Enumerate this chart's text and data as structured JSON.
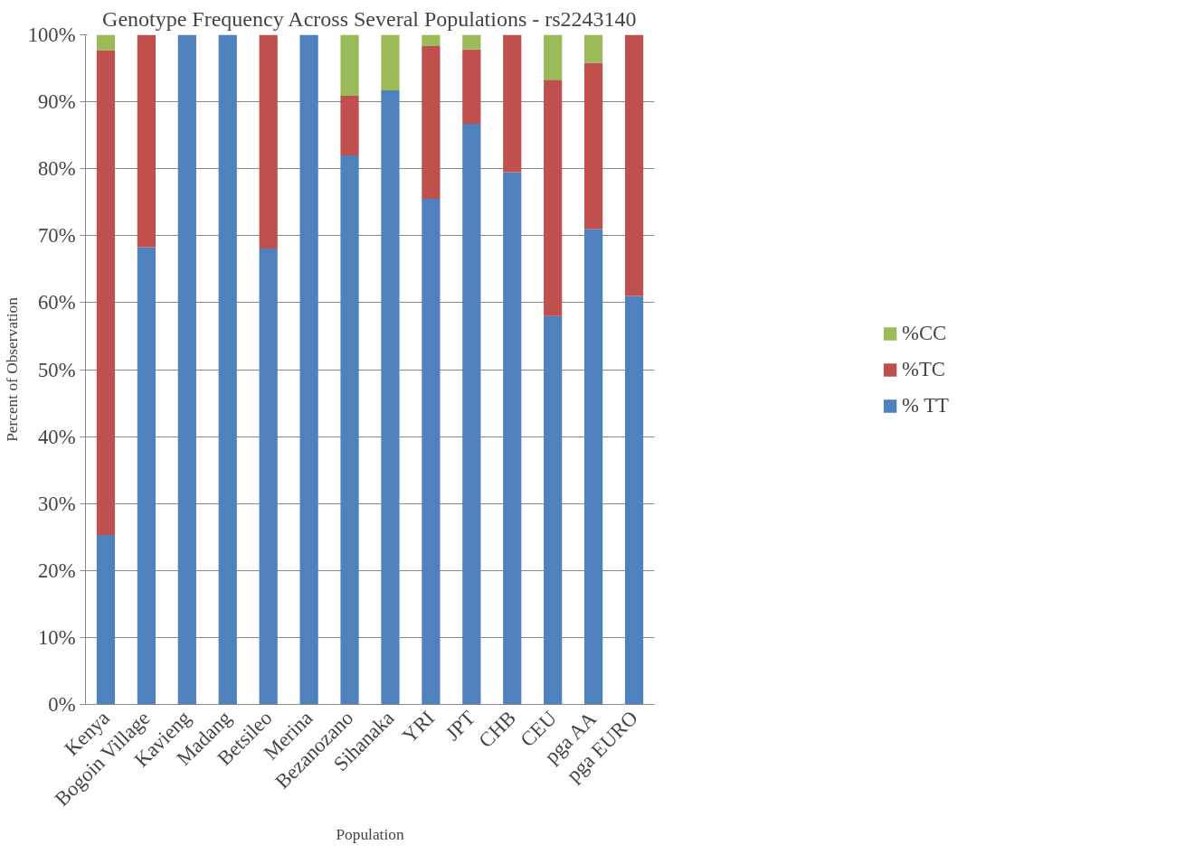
{
  "chart_data": {
    "type": "bar",
    "stacked": true,
    "title": "Genotype Frequency Across Several Populations - rs2243140",
    "xlabel": "Population",
    "ylabel": "Percent of Observation",
    "categories": [
      "Kenya",
      "Bogoin Village",
      "Kavieng",
      "Madang",
      "Betsileo",
      "Merina",
      "Bezanozano",
      "Sihanaka",
      "YRI",
      "JPT",
      "CHB",
      "CEU",
      "pga AA",
      "pga EURO"
    ],
    "series": [
      {
        "name": "% TT",
        "color": "#4f81bd",
        "values": [
          25.3,
          68.3,
          100,
          100,
          68.1,
          100,
          82.0,
          91.7,
          75.5,
          86.7,
          79.5,
          58.0,
          71.0,
          61.0
        ]
      },
      {
        "name": "%TC",
        "color": "#c0504d",
        "values": [
          72.4,
          31.7,
          0,
          0,
          31.9,
          0,
          8.9,
          0,
          22.8,
          11.1,
          20.5,
          35.3,
          24.8,
          39.0
        ]
      },
      {
        "name": "%CC",
        "color": "#9bbb59",
        "values": [
          2.3,
          0,
          0,
          0,
          0,
          0,
          9.1,
          8.3,
          1.7,
          2.2,
          0,
          6.7,
          4.2,
          0
        ]
      }
    ],
    "ylim": [
      0,
      100
    ],
    "yticks": [
      {
        "value": 0,
        "label": "0%"
      },
      {
        "value": 10,
        "label": "10%"
      },
      {
        "value": 20,
        "label": "20%"
      },
      {
        "value": 30,
        "label": "30%"
      },
      {
        "value": 40,
        "label": "40%"
      },
      {
        "value": 50,
        "label": "50%"
      },
      {
        "value": 60,
        "label": "60%"
      },
      {
        "value": 70,
        "label": "70%"
      },
      {
        "value": 80,
        "label": "80%"
      },
      {
        "value": 90,
        "label": "90%"
      },
      {
        "value": 100,
        "label": "100%"
      }
    ],
    "grid": "y",
    "legend": "right"
  }
}
